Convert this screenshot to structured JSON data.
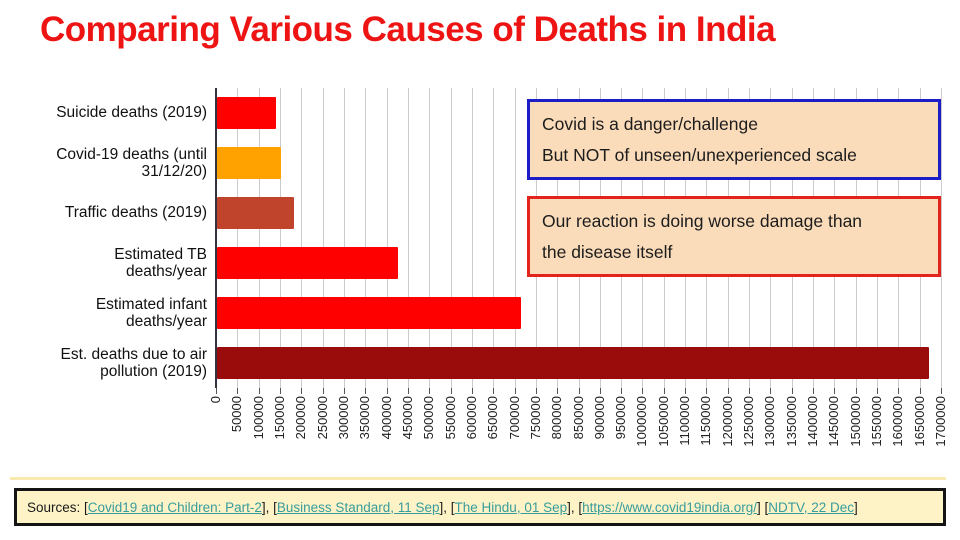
{
  "header": {
    "title": "Comparing Various Causes of Deaths in India",
    "color": "#EE1414"
  },
  "chart_data": {
    "type": "bar",
    "orientation": "horizontal",
    "title": "",
    "xlabel": "",
    "ylabel": "",
    "categories": [
      "Suicide deaths (2019)",
      "Covid-19 deaths (until\n31/12/20)",
      "Traffic deaths (2019)",
      "Estimated TB\ndeaths/year",
      "Estimated infant\ndeaths/year",
      "Est. deaths due to air\npollution (2019)"
    ],
    "values": [
      139000,
      149000,
      181000,
      425000,
      712000,
      1670000
    ],
    "bar_colors": [
      "#FE0000",
      "#FFA200",
      "#C0432B",
      "#FE0000",
      "#FE0000",
      "#9A0B0B"
    ],
    "xlim": [
      0,
      1700000
    ],
    "x_tick_step": 50000,
    "x_tick_labels": [
      "0",
      "50000",
      "100000",
      "150000",
      "200000",
      "250000",
      "300000",
      "350000",
      "400000",
      "450000",
      "500000",
      "550000",
      "600000",
      "650000",
      "700000",
      "750000",
      "800000",
      "850000",
      "900000",
      "950000",
      "1000000",
      "1050000",
      "1100000",
      "1150000",
      "1200000",
      "1250000",
      "1300000",
      "1350000",
      "1400000",
      "1450000",
      "1500000",
      "1550000",
      "1600000",
      "1650000",
      "1700000"
    ],
    "grid": true,
    "legend": "none",
    "gridline_color": "#CBCBCB",
    "axis_color": "#33333E",
    "tick_color": "#555555",
    "label_color": "#111111",
    "tick_label_color": "#222222"
  },
  "notes": {
    "blue": {
      "text": "Covid is a danger/challenge\nBut NOT of unseen/unexperienced scale",
      "border_color": "#1D1DC8",
      "bg_color": "#FBDCBA"
    },
    "red": {
      "text": "Our reaction is doing worse damage than\nthe disease itself",
      "border_color": "#E3241C",
      "bg_color": "#FBDCBA"
    }
  },
  "footer": {
    "bg_color": "#FDF3C7",
    "border_color": "#141414",
    "text_color": "#1A1A1A",
    "link_color": "#389C9C",
    "segments": [
      {
        "text": "Sources: [",
        "link": false
      },
      {
        "text": "Covid19 and Children: Part-2",
        "link": true
      },
      {
        "text": "], [",
        "link": false
      },
      {
        "text": "Business Standard, 11 Sep",
        "link": true
      },
      {
        "text": "], [",
        "link": false
      },
      {
        "text": "The Hindu, 01 Sep",
        "link": true
      },
      {
        "text": "], [",
        "link": false
      },
      {
        "text": "https://www.covid19india.org/",
        "link": true
      },
      {
        "text": "] [",
        "link": false
      },
      {
        "text": "NDTV, 22 Dec",
        "link": true
      },
      {
        "text": "]",
        "link": false
      }
    ]
  }
}
